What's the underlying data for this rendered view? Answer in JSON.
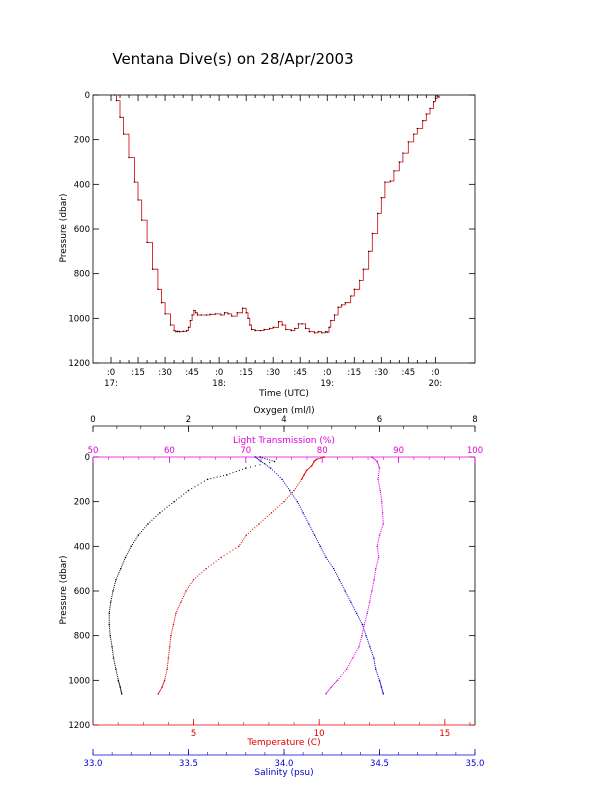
{
  "title": "Ventana Dive(s) on 28/Apr/2003",
  "colors": {
    "axis": "#000000",
    "temperature": "#dd0000",
    "salinity": "#0000cc",
    "light_transmission": "#dd00dd",
    "oxygen": "#000000",
    "dive_track": "#cc0000"
  },
  "chart_data": [
    {
      "type": "line",
      "name": "dive-profile",
      "xlabel": "Time (UTC)",
      "ylabel": "Pressure (dbar)",
      "xlim_minutes_after_1700": [
        -10,
        202
      ],
      "ylim": [
        1200,
        0
      ],
      "yticks": [
        0,
        200,
        400,
        600,
        800,
        1000,
        1200
      ],
      "xticks": [
        {
          "minute": 0,
          "label": ":0",
          "hour_label": "17:"
        },
        {
          "minute": 15,
          "label": ":15",
          "hour_label": ""
        },
        {
          "minute": 30,
          "label": ":30",
          "hour_label": ""
        },
        {
          "minute": 45,
          "label": ":45",
          "hour_label": ""
        },
        {
          "minute": 60,
          "label": ":0",
          "hour_label": "18:"
        },
        {
          "minute": 75,
          "label": ":15",
          "hour_label": ""
        },
        {
          "minute": 90,
          "label": ":30",
          "hour_label": ""
        },
        {
          "minute": 105,
          "label": ":45",
          "hour_label": ""
        },
        {
          "minute": 120,
          "label": ":0",
          "hour_label": "19:"
        },
        {
          "minute": 135,
          "label": ":15",
          "hour_label": ""
        },
        {
          "minute": 150,
          "label": ":30",
          "hour_label": ""
        },
        {
          "minute": 165,
          "label": ":45",
          "hour_label": ""
        },
        {
          "minute": 180,
          "label": ":0",
          "hour_label": "20:"
        }
      ],
      "series": [
        {
          "x": [
            2,
            3,
            5,
            7,
            10,
            13,
            15,
            17,
            20,
            23,
            26,
            28,
            30,
            33,
            35,
            36,
            37,
            38,
            40,
            42,
            43,
            44,
            45,
            46,
            47,
            48,
            50,
            53,
            55,
            58,
            61,
            63,
            65,
            67,
            70,
            73,
            75,
            76,
            77,
            78,
            80,
            83,
            85,
            88,
            90,
            93,
            95,
            97,
            100,
            102,
            104,
            106,
            108,
            110,
            113,
            115,
            117,
            119,
            120,
            121,
            122,
            124,
            126,
            128,
            130,
            133,
            135,
            138,
            140,
            143,
            145,
            148,
            150,
            152,
            155,
            157,
            160,
            162,
            165,
            168,
            170,
            173,
            175,
            177,
            179,
            180,
            181,
            182
          ],
          "y": [
            0,
            25,
            100,
            175,
            280,
            390,
            470,
            560,
            660,
            780,
            870,
            930,
            980,
            1030,
            1055,
            1060,
            1058,
            1060,
            1058,
            1055,
            1040,
            1010,
            985,
            965,
            975,
            985,
            985,
            985,
            982,
            980,
            985,
            975,
            980,
            990,
            975,
            955,
            975,
            1000,
            1030,
            1050,
            1055,
            1055,
            1050,
            1045,
            1040,
            1015,
            1030,
            1050,
            1055,
            1045,
            1025,
            1025,
            1045,
            1060,
            1065,
            1060,
            1065,
            1060,
            1062,
            1040,
            1010,
            985,
            950,
            940,
            930,
            900,
            870,
            830,
            780,
            700,
            620,
            530,
            460,
            390,
            385,
            340,
            300,
            260,
            210,
            175,
            150,
            115,
            85,
            60,
            30,
            15,
            5,
            10
          ]
        }
      ]
    },
    {
      "type": "scatter",
      "name": "water-column-profile",
      "ylabel": "Pressure (dbar)",
      "ylim": [
        1200,
        0
      ],
      "yticks": [
        0,
        200,
        400,
        600,
        800,
        1000,
        1200
      ],
      "axes": {
        "oxygen": {
          "label": "Oxygen (ml/l)",
          "range": [
            0,
            8
          ],
          "ticks": [
            0,
            2,
            4,
            6,
            8
          ],
          "position": "top"
        },
        "light_transmission": {
          "label": "Light Transmission (%)",
          "range": [
            50,
            100
          ],
          "ticks": [
            50,
            60,
            70,
            80,
            90,
            100
          ],
          "position": "top"
        },
        "temperature": {
          "label": "Temperature (C)",
          "range": [
            1,
            16.2
          ],
          "ticks": [
            5,
            10,
            15
          ],
          "position": "bottom"
        },
        "salinity": {
          "label": "Salinity (psu)",
          "range": [
            33.0,
            35.0
          ],
          "ticks": [
            33.0,
            33.5,
            34.0,
            34.5,
            35.0
          ],
          "tick_labels": [
            "33.0",
            "33.5",
            "34.0",
            "34.5",
            "35.0"
          ],
          "position": "bottom"
        }
      },
      "series": [
        {
          "axis": "temperature",
          "pressure": [
            0,
            10,
            20,
            40,
            60,
            80,
            100,
            150,
            200,
            250,
            300,
            350,
            400,
            450,
            500,
            550,
            600,
            650,
            700,
            750,
            800,
            850,
            900,
            950,
            1000,
            1030,
            1060
          ],
          "value": [
            10.2,
            9.9,
            9.8,
            9.7,
            9.5,
            9.4,
            9.3,
            9.0,
            8.6,
            8.1,
            7.6,
            7.1,
            6.8,
            6.1,
            5.5,
            5.0,
            4.7,
            4.5,
            4.3,
            4.2,
            4.1,
            4.05,
            4.0,
            3.95,
            3.85,
            3.75,
            3.6
          ]
        },
        {
          "axis": "salinity",
          "pressure": [
            0,
            20,
            50,
            100,
            150,
            200,
            250,
            300,
            350,
            400,
            450,
            500,
            550,
            600,
            650,
            700,
            750,
            800,
            850,
            900,
            950,
            1000,
            1030,
            1060
          ],
          "value": [
            33.85,
            33.88,
            33.93,
            33.99,
            34.03,
            34.07,
            34.1,
            34.13,
            34.16,
            34.19,
            34.22,
            34.26,
            34.29,
            34.32,
            34.35,
            34.38,
            34.41,
            34.43,
            34.45,
            34.47,
            34.48,
            34.5,
            34.51,
            34.52
          ]
        },
        {
          "axis": "light_transmission",
          "pressure": [
            0,
            20,
            50,
            100,
            150,
            200,
            250,
            300,
            350,
            400,
            450,
            500,
            550,
            600,
            650,
            700,
            750,
            800,
            850,
            900,
            950,
            1000,
            1030,
            1060
          ],
          "value": [
            86.5,
            87.2,
            87.5,
            87.3,
            87.6,
            87.8,
            87.9,
            88.0,
            87.5,
            87.2,
            87.4,
            87.0,
            86.8,
            86.5,
            86.2,
            85.9,
            85.5,
            85.2,
            84.8,
            84.0,
            83.2,
            82.0,
            81.2,
            80.5
          ]
        },
        {
          "axis": "oxygen",
          "pressure": [
            0,
            20,
            50,
            80,
            100,
            150,
            200,
            250,
            300,
            350,
            400,
            450,
            500,
            550,
            600,
            650,
            700,
            750,
            800,
            850,
            900,
            950,
            1000,
            1030,
            1060
          ],
          "value": [
            3.5,
            3.8,
            3.2,
            2.8,
            2.4,
            2.0,
            1.7,
            1.4,
            1.15,
            0.95,
            0.8,
            0.68,
            0.58,
            0.48,
            0.42,
            0.37,
            0.34,
            0.34,
            0.36,
            0.4,
            0.43,
            0.48,
            0.53,
            0.57,
            0.6
          ]
        }
      ]
    }
  ]
}
